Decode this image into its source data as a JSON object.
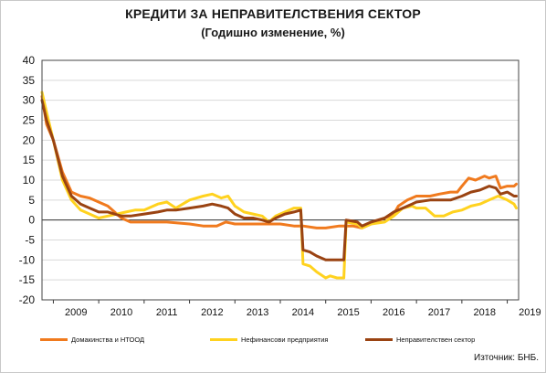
{
  "title": "КРЕДИТИ ЗА НЕПРАВИТЕЛСТВЕНИЯ СЕКТОР",
  "subtitle": "(Годишно изменение, %)",
  "source": "Източник: БНБ.",
  "colors": {
    "households": "#f07a1e",
    "nonfinancial": "#ffd21f",
    "nongovernment": "#9a4312",
    "grid": "#d9d9d9",
    "axis": "#333333"
  },
  "chart_data": {
    "type": "line",
    "title": "КРЕДИТИ ЗА НЕПРАВИТЕЛСТВЕНИЯ СЕКТОР",
    "subtitle": "(Годишно изменение, %)",
    "xlabel": "",
    "ylabel": "",
    "ylim": [
      -20,
      40
    ],
    "yticks": [
      "40",
      "35",
      "30",
      "25",
      "20",
      "15",
      "10",
      "5",
      "0",
      "-5",
      "-10",
      "-15",
      "-20"
    ],
    "xlim": [
      2008.75,
      2019.25
    ],
    "xticks": [
      "2009",
      "2010",
      "2011",
      "2012",
      "2013",
      "2014",
      "2015",
      "2016",
      "2017",
      "2018",
      "2019"
    ],
    "grid": "horizontal",
    "legend": "bottom",
    "series": [
      {
        "name": "Домакинства и НТООД",
        "color_key": "households",
        "points": [
          [
            2008.75,
            31
          ],
          [
            2008.85,
            24
          ],
          [
            2009.0,
            20
          ],
          [
            2009.2,
            12
          ],
          [
            2009.4,
            7
          ],
          [
            2009.6,
            6
          ],
          [
            2009.8,
            5.5
          ],
          [
            2010.0,
            4.5
          ],
          [
            2010.2,
            3.5
          ],
          [
            2010.35,
            2
          ],
          [
            2010.5,
            0.5
          ],
          [
            2010.7,
            -0.5
          ],
          [
            2011.0,
            -0.5
          ],
          [
            2011.5,
            -0.5
          ],
          [
            2012.0,
            -1
          ],
          [
            2012.3,
            -1.5
          ],
          [
            2012.6,
            -1.5
          ],
          [
            2012.8,
            -0.5
          ],
          [
            2013.0,
            -1
          ],
          [
            2013.5,
            -1
          ],
          [
            2014.0,
            -1
          ],
          [
            2014.3,
            -1.5
          ],
          [
            2014.5,
            -1.5
          ],
          [
            2014.8,
            -2
          ],
          [
            2015.0,
            -2
          ],
          [
            2015.3,
            -1.5
          ],
          [
            2015.6,
            -1.5
          ],
          [
            2015.8,
            -2
          ],
          [
            2016.0,
            -1
          ],
          [
            2016.3,
            0.5
          ],
          [
            2016.5,
            1.5
          ],
          [
            2016.6,
            3.5
          ],
          [
            2016.8,
            5
          ],
          [
            2017.0,
            6
          ],
          [
            2017.3,
            6
          ],
          [
            2017.5,
            6.5
          ],
          [
            2017.75,
            7
          ],
          [
            2017.9,
            7
          ],
          [
            2018.0,
            8.5
          ],
          [
            2018.15,
            10.5
          ],
          [
            2018.3,
            10
          ],
          [
            2018.5,
            11
          ],
          [
            2018.6,
            10.5
          ],
          [
            2018.75,
            11
          ],
          [
            2018.85,
            8
          ],
          [
            2019.0,
            8.5
          ],
          [
            2019.15,
            8.5
          ],
          [
            2019.2,
            9
          ]
        ]
      },
      {
        "name": "Нефинансови предприятия",
        "color_key": "nonfinancial",
        "points": [
          [
            2008.75,
            32
          ],
          [
            2008.85,
            27
          ],
          [
            2009.0,
            20
          ],
          [
            2009.2,
            10
          ],
          [
            2009.4,
            5
          ],
          [
            2009.6,
            2.5
          ],
          [
            2009.8,
            1.5
          ],
          [
            2010.0,
            0.5
          ],
          [
            2010.2,
            1
          ],
          [
            2010.4,
            1.5
          ],
          [
            2010.6,
            2
          ],
          [
            2010.8,
            2.5
          ],
          [
            2011.0,
            2.5
          ],
          [
            2011.3,
            4
          ],
          [
            2011.5,
            4.5
          ],
          [
            2011.7,
            3
          ],
          [
            2012.0,
            5
          ],
          [
            2012.3,
            6
          ],
          [
            2012.5,
            6.5
          ],
          [
            2012.7,
            5.5
          ],
          [
            2012.85,
            6
          ],
          [
            2013.0,
            3.5
          ],
          [
            2013.2,
            2
          ],
          [
            2013.4,
            1.5
          ],
          [
            2013.6,
            1
          ],
          [
            2013.75,
            -0.5
          ],
          [
            2013.9,
            1
          ],
          [
            2014.1,
            2
          ],
          [
            2014.3,
            3
          ],
          [
            2014.45,
            3
          ],
          [
            2014.5,
            -11
          ],
          [
            2014.65,
            -11.5
          ],
          [
            2014.8,
            -13
          ],
          [
            2015.0,
            -14.5
          ],
          [
            2015.1,
            -14
          ],
          [
            2015.25,
            -14.5
          ],
          [
            2015.4,
            -14.5
          ],
          [
            2015.45,
            -0.5
          ],
          [
            2015.7,
            -1
          ],
          [
            2015.8,
            -2
          ],
          [
            2016.0,
            -1
          ],
          [
            2016.3,
            -0.5
          ],
          [
            2016.5,
            1
          ],
          [
            2016.7,
            3
          ],
          [
            2016.9,
            3.5
          ],
          [
            2017.0,
            3
          ],
          [
            2017.2,
            3
          ],
          [
            2017.4,
            1
          ],
          [
            2017.6,
            1
          ],
          [
            2017.8,
            2
          ],
          [
            2018.0,
            2.5
          ],
          [
            2018.2,
            3.5
          ],
          [
            2018.4,
            4
          ],
          [
            2018.6,
            5
          ],
          [
            2018.8,
            6
          ],
          [
            2019.0,
            5
          ],
          [
            2019.15,
            4
          ],
          [
            2019.2,
            3
          ]
        ]
      },
      {
        "name": "Неправителствен сектор",
        "color_key": "nongovernment",
        "points": [
          [
            2008.75,
            30
          ],
          [
            2008.85,
            25
          ],
          [
            2009.0,
            20
          ],
          [
            2009.2,
            11
          ],
          [
            2009.4,
            6
          ],
          [
            2009.6,
            4
          ],
          [
            2009.8,
            3
          ],
          [
            2010.0,
            2
          ],
          [
            2010.2,
            2
          ],
          [
            2010.35,
            1.5
          ],
          [
            2010.5,
            1
          ],
          [
            2010.7,
            1
          ],
          [
            2011.0,
            1.5
          ],
          [
            2011.3,
            2
          ],
          [
            2011.5,
            2.5
          ],
          [
            2011.7,
            2.5
          ],
          [
            2012.0,
            3
          ],
          [
            2012.3,
            3.5
          ],
          [
            2012.5,
            4
          ],
          [
            2012.7,
            3.5
          ],
          [
            2012.85,
            3
          ],
          [
            2013.0,
            1.5
          ],
          [
            2013.2,
            0.5
          ],
          [
            2013.4,
            0.5
          ],
          [
            2013.6,
            0
          ],
          [
            2013.75,
            -0.5
          ],
          [
            2013.9,
            0.5
          ],
          [
            2014.1,
            1.5
          ],
          [
            2014.3,
            2
          ],
          [
            2014.45,
            2.5
          ],
          [
            2014.5,
            -7.5
          ],
          [
            2014.65,
            -8
          ],
          [
            2014.8,
            -9
          ],
          [
            2015.0,
            -10
          ],
          [
            2015.2,
            -10
          ],
          [
            2015.4,
            -10
          ],
          [
            2015.45,
            0
          ],
          [
            2015.7,
            -0.5
          ],
          [
            2015.8,
            -1.5
          ],
          [
            2016.0,
            -0.5
          ],
          [
            2016.3,
            0.5
          ],
          [
            2016.5,
            2
          ],
          [
            2016.7,
            3
          ],
          [
            2016.9,
            4
          ],
          [
            2017.0,
            4.5
          ],
          [
            2017.3,
            5
          ],
          [
            2017.5,
            5
          ],
          [
            2017.75,
            5
          ],
          [
            2018.0,
            6
          ],
          [
            2018.2,
            7
          ],
          [
            2018.4,
            7.5
          ],
          [
            2018.6,
            8.5
          ],
          [
            2018.75,
            8
          ],
          [
            2018.85,
            6.5
          ],
          [
            2019.0,
            7
          ],
          [
            2019.15,
            6
          ],
          [
            2019.2,
            6
          ]
        ]
      }
    ]
  }
}
